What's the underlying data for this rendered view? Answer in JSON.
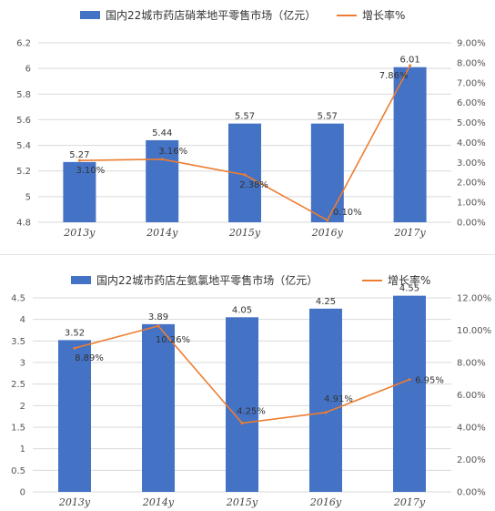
{
  "colors": {
    "bar": "#4472C4",
    "line": "#ED7D31",
    "grid": "#d9d9d9"
  },
  "chart_data": [
    {
      "type": "bar",
      "title": "",
      "xlabel": "",
      "ylabel": "",
      "legend_position": "top",
      "grid": true,
      "categories": [
        "2013y",
        "2014y",
        "2015y",
        "2016y",
        "2017y"
      ],
      "ylim": [
        4.8,
        6.2
      ],
      "y_ticks": [
        "4.8",
        "5",
        "5.2",
        "5.4",
        "5.6",
        "5.8",
        "6",
        "6.2"
      ],
      "y2lim": [
        0,
        9
      ],
      "y2_ticks": [
        "0.00%",
        "1.00%",
        "2.00%",
        "3.00%",
        "4.00%",
        "5.00%",
        "6.00%",
        "7.00%",
        "8.00%",
        "9.00%"
      ],
      "series": [
        {
          "name": "国内22城市药店硝苯地平零售市场（亿元）",
          "kind": "bar",
          "values": [
            5.27,
            5.44,
            5.57,
            5.57,
            6.01
          ],
          "labels": [
            "5.27",
            "5.44",
            "5.57",
            "5.57",
            "6.01"
          ]
        },
        {
          "name": "增长率%",
          "kind": "line",
          "axis": "secondary",
          "values": [
            3.1,
            3.16,
            2.38,
            0.1,
            7.86
          ],
          "labels": [
            "3.10%",
            "3.16%",
            "2.38%",
            "0.10%",
            "7.86%"
          ]
        }
      ]
    },
    {
      "type": "bar",
      "title": "",
      "xlabel": "",
      "ylabel": "",
      "legend_position": "top",
      "grid": true,
      "categories": [
        "2013y",
        "2014y",
        "2015y",
        "2016y",
        "2017y"
      ],
      "ylim": [
        0,
        4.5
      ],
      "y_ticks": [
        "0",
        "0.5",
        "1",
        "1.5",
        "2",
        "2.5",
        "3",
        "3.5",
        "4",
        "4.5"
      ],
      "y2lim": [
        0,
        12
      ],
      "y2_ticks": [
        "0.00%",
        "2.00%",
        "4.00%",
        "6.00%",
        "8.00%",
        "10.00%",
        "12.00%"
      ],
      "series": [
        {
          "name": "国内22城市药店左氨氯地平零售市场（亿元）",
          "kind": "bar",
          "values": [
            3.52,
            3.89,
            4.05,
            4.25,
            4.55
          ],
          "labels": [
            "3.52",
            "3.89",
            "4.05",
            "4.25",
            "4.55"
          ]
        },
        {
          "name": "增长率%",
          "kind": "line",
          "axis": "secondary",
          "values": [
            8.89,
            10.26,
            4.25,
            4.91,
            6.95
          ],
          "labels": [
            "8.89%",
            "10.26%",
            "4.25%",
            "4.91%",
            "6.95%"
          ]
        }
      ]
    }
  ]
}
